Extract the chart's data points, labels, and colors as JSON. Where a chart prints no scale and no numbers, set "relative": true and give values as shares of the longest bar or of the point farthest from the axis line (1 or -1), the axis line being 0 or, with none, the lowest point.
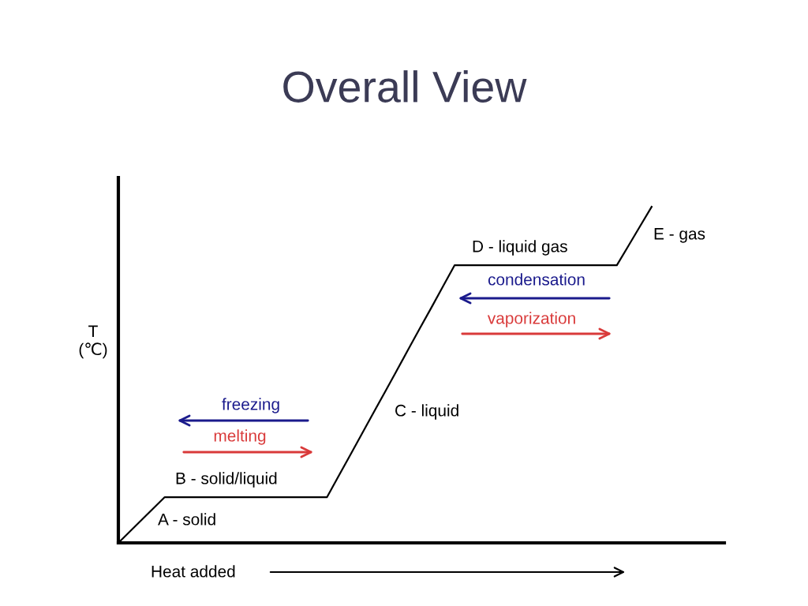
{
  "chart_data": {
    "type": "line",
    "title": "Overall View",
    "relative": true,
    "xlabel": "Heat added",
    "ylabel": "T\n(℃)",
    "categories": [
      null,
      null,
      null,
      null,
      null,
      null,
      null,
      null,
      null,
      null,
      null,
      null,
      null,
      null,
      null,
      null,
      null,
      null,
      null,
      null,
      null,
      null,
      null,
      null,
      null,
      null,
      null,
      null,
      null,
      null,
      null,
      null,
      null,
      null,
      null,
      null,
      null,
      null,
      null,
      null,
      null,
      null,
      null,
      null,
      null,
      null,
      null
    ],
    "series": [
      {
        "color": "#000000",
        "values": [
          0,
          0.034,
          0.068,
          0.102,
          0.136,
          0.136,
          0.136,
          0.136,
          0.136,
          0.136,
          0.136,
          0.136,
          0.136,
          0.136,
          0.136,
          0.136,
          0.136,
          0.136,
          0.136,
          0.199,
          0.261,
          0.324,
          0.387,
          0.449,
          0.512,
          0.575,
          0.638,
          0.7,
          0.763,
          0.826,
          0.826,
          0.826,
          0.826,
          0.826,
          0.826,
          0.826,
          0.826,
          0.826,
          0.826,
          0.826,
          0.826,
          0.826,
          0.826,
          0.826,
          0.884,
          0.942,
          1
        ]
      }
    ],
    "annotations": [
      "A - solid",
      "B - solid/liquid",
      "C - liquid",
      "D - liquid gas",
      "E - gas",
      "freezing",
      "melting",
      "condensation",
      "vaporization"
    ],
    "grid": false,
    "legend": false,
    "marker": "none",
    "line_style": "solid"
  }
}
